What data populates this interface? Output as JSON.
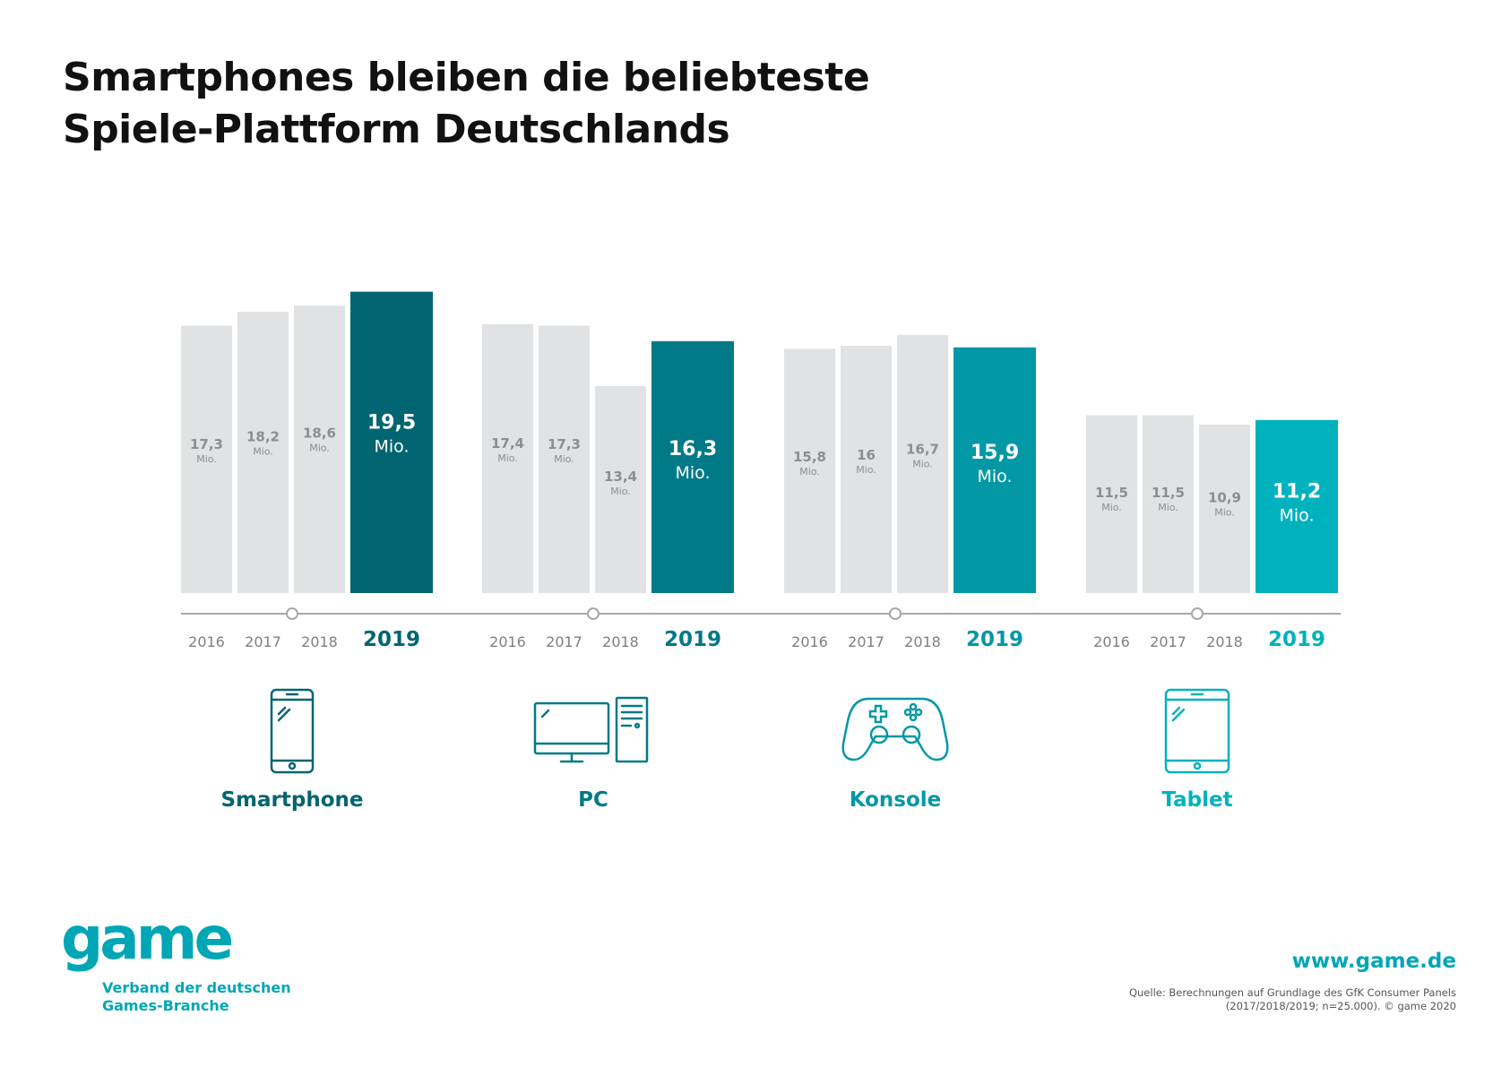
{
  "title": {
    "line1": "Smartphones bleiben die beliebteste",
    "line2": "Spiele-Plattform Deutschlands"
  },
  "chart_data": {
    "type": "bar",
    "unit": "Mio.",
    "groups": [
      {
        "platform": "Smartphone",
        "icon": "smartphone-icon",
        "color": "#016571",
        "categories": [
          "2016",
          "2017",
          "2018",
          "2019"
        ],
        "values": [
          17.3,
          18.2,
          18.6,
          19.5
        ],
        "value_labels": [
          "17,3",
          "18,2",
          "18,6",
          "19,5"
        ]
      },
      {
        "platform": "PC",
        "icon": "desktop-pc-icon",
        "color": "#007a86",
        "categories": [
          "2016",
          "2017",
          "2018",
          "2019"
        ],
        "values": [
          17.4,
          17.3,
          13.4,
          16.3
        ],
        "value_labels": [
          "17,4",
          "17,3",
          "13,4",
          "16,3"
        ]
      },
      {
        "platform": "Konsole",
        "icon": "gamepad-icon",
        "color": "#0398a5",
        "categories": [
          "2016",
          "2017",
          "2018",
          "2019"
        ],
        "values": [
          15.8,
          16,
          16.7,
          15.9
        ],
        "value_labels": [
          "15,8",
          "16",
          "16,7",
          "15,9"
        ]
      },
      {
        "platform": "Tablet",
        "icon": "tablet-icon",
        "color": "#00b2bd",
        "categories": [
          "2016",
          "2017",
          "2018",
          "2019"
        ],
        "values": [
          11.5,
          11.5,
          10.9,
          11.2
        ],
        "value_labels": [
          "11,5",
          "11,5",
          "10,9",
          "11,2"
        ]
      }
    ],
    "past_bar_color": "#e1e2e4",
    "past_label_color": "#8b8e91",
    "axis_color": "#a6a8ab"
  },
  "logo": {
    "wordmark": "game",
    "tagline_line1": "Verband der deutschen",
    "tagline_line2": "Games-Branche",
    "color": "#00a6b5"
  },
  "footer": {
    "website": "www.game.de",
    "source_line1": "Quelle: Berechnungen auf Grundlage des GfK Consumer Panels",
    "source_line2": "(2017/2018/2019; n=25.000). © game 2020"
  }
}
